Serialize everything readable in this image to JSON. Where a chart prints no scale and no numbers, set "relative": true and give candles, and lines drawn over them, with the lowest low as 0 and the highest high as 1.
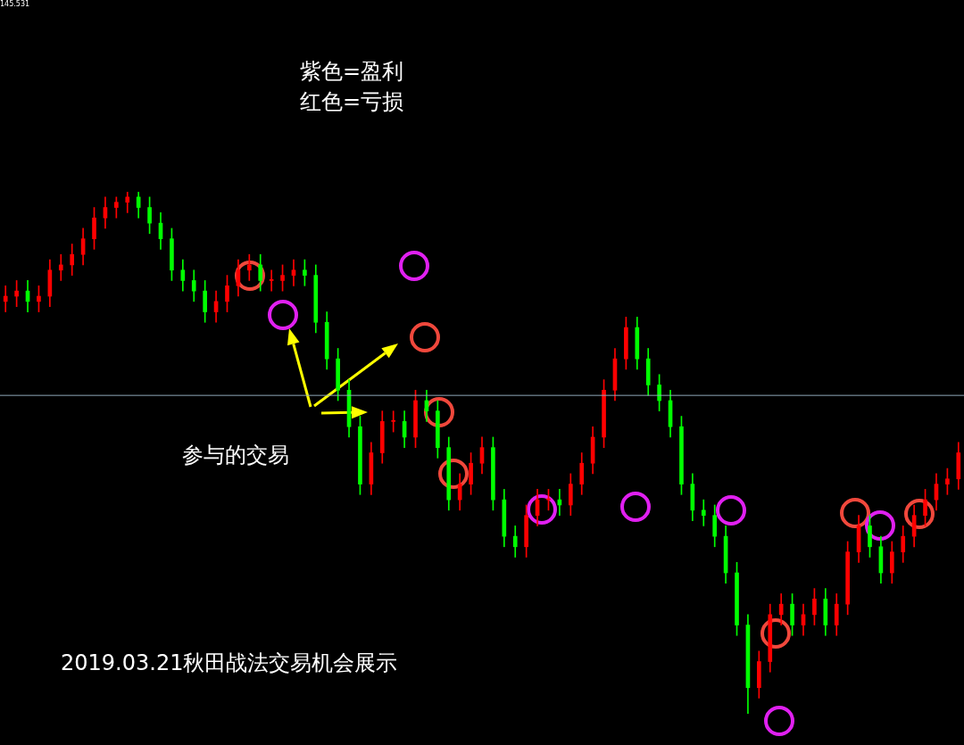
{
  "chart_data": {
    "type": "candlestick",
    "relative": true,
    "tick_labels": false,
    "legend": false,
    "annotations": [
      "145.531",
      "紫色=盈利",
      "红色=亏损",
      "参与的交易",
      "2019.03.21秋田战法交易机会展示"
    ],
    "ref_lines": [
      {
        "axis": "y",
        "value": 0.61,
        "color": "#8fa8b8"
      }
    ],
    "categories": [
      null,
      null,
      null,
      null,
      null,
      null,
      null,
      null,
      null,
      null,
      null,
      null,
      null,
      null,
      null,
      null,
      null,
      null,
      null,
      null,
      null,
      null,
      null,
      null,
      null,
      null,
      null,
      null,
      null,
      null,
      null,
      null,
      null,
      null,
      null,
      null,
      null,
      null,
      null,
      null,
      null,
      null,
      null,
      null,
      null,
      null,
      null,
      null,
      null,
      null,
      null,
      null,
      null,
      null,
      null,
      null,
      null,
      null,
      null,
      null,
      null,
      null,
      null,
      null,
      null,
      null,
      null,
      null,
      null,
      null,
      null,
      null,
      null,
      null,
      null,
      null,
      null,
      null,
      null,
      null,
      null,
      null,
      null,
      null,
      null,
      null,
      null
    ],
    "ohlc": [
      [
        0.79,
        0.82,
        0.77,
        0.8
      ],
      [
        0.8,
        0.83,
        0.78,
        0.81
      ],
      [
        0.81,
        0.83,
        0.77,
        0.79
      ],
      [
        0.79,
        0.82,
        0.77,
        0.8
      ],
      [
        0.8,
        0.87,
        0.78,
        0.85
      ],
      [
        0.85,
        0.88,
        0.83,
        0.86
      ],
      [
        0.86,
        0.9,
        0.84,
        0.88
      ],
      [
        0.88,
        0.93,
        0.86,
        0.91
      ],
      [
        0.91,
        0.97,
        0.89,
        0.95
      ],
      [
        0.95,
        0.99,
        0.93,
        0.97
      ],
      [
        0.97,
        0.99,
        0.95,
        0.98
      ],
      [
        0.98,
        1.0,
        0.96,
        0.99
      ],
      [
        0.99,
        1.0,
        0.95,
        0.97
      ],
      [
        0.97,
        0.99,
        0.92,
        0.94
      ],
      [
        0.94,
        0.96,
        0.89,
        0.91
      ],
      [
        0.91,
        0.93,
        0.83,
        0.85
      ],
      [
        0.85,
        0.87,
        0.81,
        0.83
      ],
      [
        0.83,
        0.85,
        0.79,
        0.81
      ],
      [
        0.81,
        0.83,
        0.75,
        0.77
      ],
      [
        0.77,
        0.81,
        0.75,
        0.79
      ],
      [
        0.79,
        0.84,
        0.77,
        0.82
      ],
      [
        0.82,
        0.87,
        0.8,
        0.85
      ],
      [
        0.85,
        0.88,
        0.83,
        0.86
      ],
      [
        0.86,
        0.88,
        0.81,
        0.83
      ],
      [
        0.83,
        0.85,
        0.81,
        0.83
      ],
      [
        0.83,
        0.86,
        0.81,
        0.84
      ],
      [
        0.84,
        0.87,
        0.82,
        0.85
      ],
      [
        0.85,
        0.87,
        0.82,
        0.84
      ],
      [
        0.84,
        0.86,
        0.73,
        0.75
      ],
      [
        0.75,
        0.77,
        0.66,
        0.68
      ],
      [
        0.68,
        0.7,
        0.6,
        0.62
      ],
      [
        0.62,
        0.64,
        0.53,
        0.55
      ],
      [
        0.55,
        0.57,
        0.42,
        0.44
      ],
      [
        0.44,
        0.52,
        0.42,
        0.5
      ],
      [
        0.5,
        0.58,
        0.48,
        0.56
      ],
      [
        0.56,
        0.58,
        0.54,
        0.56
      ],
      [
        0.56,
        0.58,
        0.51,
        0.53
      ],
      [
        0.53,
        0.62,
        0.51,
        0.6
      ],
      [
        0.6,
        0.62,
        0.56,
        0.58
      ],
      [
        0.58,
        0.6,
        0.49,
        0.51
      ],
      [
        0.51,
        0.53,
        0.39,
        0.41
      ],
      [
        0.41,
        0.46,
        0.39,
        0.44
      ],
      [
        0.44,
        0.5,
        0.42,
        0.48
      ],
      [
        0.48,
        0.53,
        0.46,
        0.51
      ],
      [
        0.51,
        0.53,
        0.39,
        0.41
      ],
      [
        0.41,
        0.43,
        0.32,
        0.34
      ],
      [
        0.34,
        0.36,
        0.3,
        0.32
      ],
      [
        0.32,
        0.4,
        0.3,
        0.38
      ],
      [
        0.38,
        0.43,
        0.36,
        0.41
      ],
      [
        0.41,
        0.43,
        0.39,
        0.41
      ],
      [
        0.41,
        0.43,
        0.38,
        0.4
      ],
      [
        0.4,
        0.46,
        0.38,
        0.44
      ],
      [
        0.44,
        0.5,
        0.42,
        0.48
      ],
      [
        0.48,
        0.55,
        0.46,
        0.53
      ],
      [
        0.53,
        0.64,
        0.51,
        0.62
      ],
      [
        0.62,
        0.7,
        0.6,
        0.68
      ],
      [
        0.68,
        0.76,
        0.66,
        0.74
      ],
      [
        0.74,
        0.76,
        0.66,
        0.68
      ],
      [
        0.68,
        0.7,
        0.61,
        0.63
      ],
      [
        0.63,
        0.65,
        0.58,
        0.6
      ],
      [
        0.6,
        0.62,
        0.53,
        0.55
      ],
      [
        0.55,
        0.57,
        0.42,
        0.44
      ],
      [
        0.44,
        0.46,
        0.37,
        0.39
      ],
      [
        0.39,
        0.41,
        0.36,
        0.38
      ],
      [
        0.38,
        0.4,
        0.32,
        0.34
      ],
      [
        0.34,
        0.36,
        0.25,
        0.27
      ],
      [
        0.27,
        0.29,
        0.15,
        0.17
      ],
      [
        0.17,
        0.19,
        0.0,
        0.05
      ],
      [
        0.05,
        0.12,
        0.03,
        0.1
      ],
      [
        0.1,
        0.21,
        0.08,
        0.19
      ],
      [
        0.19,
        0.23,
        0.17,
        0.21
      ],
      [
        0.21,
        0.23,
        0.15,
        0.17
      ],
      [
        0.17,
        0.21,
        0.15,
        0.19
      ],
      [
        0.19,
        0.24,
        0.17,
        0.22
      ],
      [
        0.22,
        0.24,
        0.15,
        0.17
      ],
      [
        0.17,
        0.23,
        0.15,
        0.21
      ],
      [
        0.21,
        0.33,
        0.19,
        0.31
      ],
      [
        0.31,
        0.38,
        0.29,
        0.36
      ],
      [
        0.36,
        0.38,
        0.3,
        0.32
      ],
      [
        0.32,
        0.34,
        0.25,
        0.27
      ],
      [
        0.27,
        0.33,
        0.25,
        0.31
      ],
      [
        0.31,
        0.36,
        0.29,
        0.34
      ],
      [
        0.34,
        0.4,
        0.32,
        0.38
      ],
      [
        0.38,
        0.43,
        0.36,
        0.41
      ],
      [
        0.41,
        0.46,
        0.39,
        0.44
      ],
      [
        0.44,
        0.47,
        0.42,
        0.45
      ],
      [
        0.45,
        0.52,
        0.43,
        0.5
      ]
    ],
    "colors": [
      "#ff0000",
      "#ff0000",
      "#00ff00",
      "#ff0000",
      "#ff0000",
      "#ff0000",
      "#ff0000",
      "#ff0000",
      "#ff0000",
      "#ff0000",
      "#ff0000",
      "#ff0000",
      "#00ff00",
      "#00ff00",
      "#00ff00",
      "#00ff00",
      "#00ff00",
      "#00ff00",
      "#00ff00",
      "#ff0000",
      "#ff0000",
      "#ff0000",
      "#ff0000",
      "#00ff00",
      "#ff0000",
      "#ff0000",
      "#ff0000",
      "#00ff00",
      "#00ff00",
      "#00ff00",
      "#00ff00",
      "#00ff00",
      "#00ff00",
      "#ff0000",
      "#ff0000",
      "#ff0000",
      "#00ff00",
      "#ff0000",
      "#00ff00",
      "#00ff00",
      "#00ff00",
      "#ff0000",
      "#ff0000",
      "#ff0000",
      "#00ff00",
      "#00ff00",
      "#00ff00",
      "#ff0000",
      "#ff0000",
      "#ff0000",
      "#00ff00",
      "#ff0000",
      "#ff0000",
      "#ff0000",
      "#ff0000",
      "#ff0000",
      "#ff0000",
      "#00ff00",
      "#00ff00",
      "#00ff00",
      "#00ff00",
      "#00ff00",
      "#00ff00",
      "#00ff00",
      "#00ff00",
      "#00ff00",
      "#00ff00",
      "#00ff00",
      "#ff0000",
      "#ff0000",
      "#ff0000",
      "#00ff00",
      "#ff0000",
      "#ff0000",
      "#00ff00",
      "#ff0000",
      "#ff0000",
      "#ff0000",
      "#00ff00",
      "#00ff00",
      "#ff0000",
      "#ff0000",
      "#ff0000",
      "#ff0000",
      "#ff0000",
      "#ff0000",
      "#ff0000"
    ]
  }
}
